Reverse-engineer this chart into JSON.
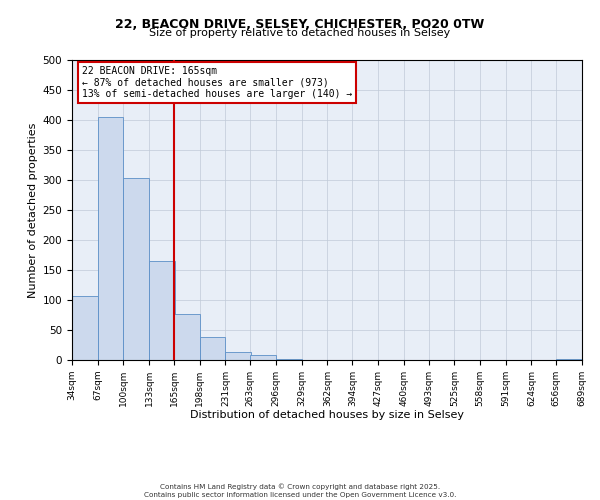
{
  "title_line1": "22, BEACON DRIVE, SELSEY, CHICHESTER, PO20 0TW",
  "title_line2": "Size of property relative to detached houses in Selsey",
  "xlabel": "Distribution of detached houses by size in Selsey",
  "ylabel": "Number of detached properties",
  "bar_edges": [
    34,
    67,
    100,
    133,
    165,
    198,
    231,
    263,
    296,
    329,
    362,
    394,
    427,
    460,
    493,
    525,
    558,
    591,
    624,
    656,
    689
  ],
  "bar_heights": [
    107,
    405,
    303,
    165,
    77,
    38,
    13,
    8,
    2,
    0,
    0,
    0,
    0,
    0,
    0,
    0,
    0,
    0,
    0,
    2
  ],
  "bar_color": "#ccd9ed",
  "bar_edge_color": "#5b8fc7",
  "ref_line_x": 165,
  "ref_line_color": "#cc0000",
  "annotation_title": "22 BEACON DRIVE: 165sqm",
  "annotation_line2": "← 87% of detached houses are smaller (973)",
  "annotation_line3": "13% of semi-detached houses are larger (140) →",
  "annotation_box_color": "#cc0000",
  "ylim": [
    0,
    500
  ],
  "yticks": [
    0,
    50,
    100,
    150,
    200,
    250,
    300,
    350,
    400,
    450,
    500
  ],
  "tick_labels": [
    "34sqm",
    "67sqm",
    "100sqm",
    "133sqm",
    "165sqm",
    "198sqm",
    "231sqm",
    "263sqm",
    "296sqm",
    "329sqm",
    "362sqm",
    "394sqm",
    "427sqm",
    "460sqm",
    "493sqm",
    "525sqm",
    "558sqm",
    "591sqm",
    "624sqm",
    "656sqm",
    "689sqm"
  ],
  "background_color": "#e8eef7",
  "grid_color": "#c0cad8",
  "footer_line1": "Contains HM Land Registry data © Crown copyright and database right 2025.",
  "footer_line2": "Contains public sector information licensed under the Open Government Licence v3.0."
}
